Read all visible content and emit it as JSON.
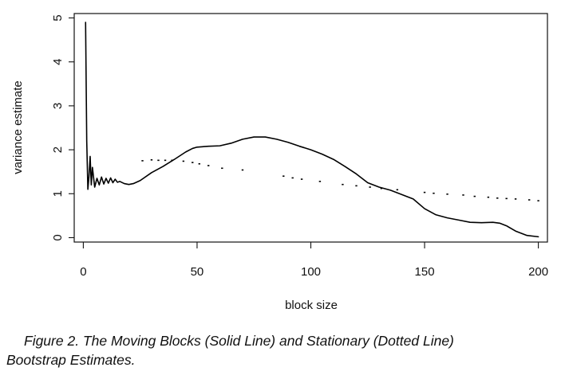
{
  "chart_data": {
    "type": "line",
    "title": "",
    "xlabel": "block size",
    "ylabel": "variance estimate",
    "xlim": [
      -4,
      204
    ],
    "ylim": [
      -0.1,
      5.1
    ],
    "xticks": [
      0,
      50,
      100,
      150,
      200
    ],
    "yticks": [
      0,
      1,
      2,
      3,
      4,
      5
    ],
    "grid": false,
    "legend": "none",
    "series": [
      {
        "style": "solid",
        "color": "#000000",
        "x": [
          1,
          1.5,
          2,
          2.5,
          3,
          3.5,
          4,
          5,
          6,
          7,
          8,
          9,
          10,
          11,
          12,
          13,
          14,
          15,
          16,
          18,
          20,
          22,
          25,
          30,
          35,
          40,
          45,
          48,
          50,
          55,
          60,
          65,
          70,
          75,
          80,
          85,
          90,
          95,
          100,
          105,
          110,
          115,
          120,
          125,
          130,
          135,
          140,
          145,
          150,
          155,
          160,
          165,
          170,
          175,
          180,
          183,
          186,
          190,
          195,
          200
        ],
        "y": [
          4.9,
          2.2,
          1.1,
          1.4,
          1.85,
          1.2,
          1.6,
          1.15,
          1.35,
          1.2,
          1.38,
          1.22,
          1.35,
          1.24,
          1.36,
          1.25,
          1.33,
          1.26,
          1.28,
          1.23,
          1.21,
          1.23,
          1.3,
          1.48,
          1.62,
          1.78,
          1.95,
          2.03,
          2.06,
          2.08,
          2.09,
          2.15,
          2.24,
          2.29,
          2.29,
          2.24,
          2.17,
          2.08,
          2.0,
          1.9,
          1.78,
          1.62,
          1.45,
          1.25,
          1.15,
          1.08,
          0.98,
          0.88,
          0.66,
          0.52,
          0.45,
          0.4,
          0.35,
          0.34,
          0.35,
          0.33,
          0.27,
          0.15,
          0.05,
          0.02
        ]
      },
      {
        "style": "dotted",
        "color": "#000000",
        "x": [
          26,
          30,
          33,
          36,
          39,
          44,
          48,
          51,
          55,
          61,
          70,
          88,
          92,
          96,
          104,
          114,
          120,
          126,
          131,
          138,
          150,
          154,
          160,
          167,
          172,
          178,
          182,
          186,
          190,
          196,
          200
        ],
        "y": [
          1.75,
          1.77,
          1.76,
          1.76,
          1.76,
          1.74,
          1.71,
          1.68,
          1.64,
          1.58,
          1.54,
          1.4,
          1.36,
          1.33,
          1.28,
          1.21,
          1.18,
          1.15,
          1.12,
          1.09,
          1.03,
          1.01,
          0.99,
          0.97,
          0.94,
          0.92,
          0.9,
          0.89,
          0.88,
          0.86,
          0.84
        ]
      }
    ]
  },
  "caption": {
    "line1": "Figure 2.  The Moving Blocks (Solid Line) and Stationary (Dotted Line)",
    "line2": "Bootstrap Estimates."
  }
}
